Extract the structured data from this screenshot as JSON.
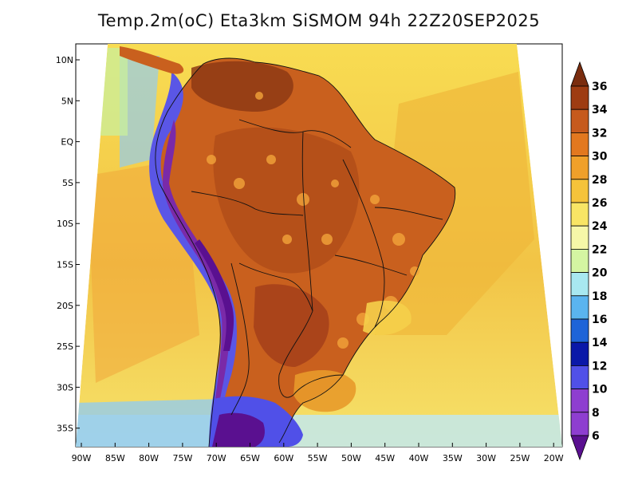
{
  "title": "Temp.2m(oC) Eta3km SiSMOM 94h 22Z20SEP2025",
  "map": {
    "lat_labels": [
      "10N",
      "5N",
      "EQ",
      "5S",
      "10S",
      "15S",
      "20S",
      "25S",
      "30S",
      "35S"
    ],
    "lon_labels": [
      "90W",
      "85W",
      "80W",
      "75W",
      "70W",
      "65W",
      "60W",
      "55W",
      "50W",
      "45W",
      "40W",
      "35W",
      "30W",
      "25W",
      "20W"
    ],
    "region": "South America",
    "field": "2m air temperature",
    "colors": {
      "ocean_warm": "#f3c44a",
      "ocean_cool": "#f8e860",
      "land_hot": "#c25a1c",
      "land_very_hot": "#9a3a12",
      "andes_cold": "#6a1f9a",
      "coast_cool": "#93ccee"
    }
  },
  "colorbar": {
    "labels": [
      "36",
      "34",
      "32",
      "30",
      "28",
      "26",
      "24",
      "22",
      "20",
      "18",
      "16",
      "14",
      "12",
      "10",
      "8",
      "6"
    ],
    "colors": [
      "#7a2d0f",
      "#9e3c12",
      "#c65a1d",
      "#e2781f",
      "#f0a02a",
      "#f5c33a",
      "#f8e565",
      "#f6f7a8",
      "#d4f5a2",
      "#a8e8f0",
      "#5ab4ef",
      "#1e64d8",
      "#0a18a8",
      "#5050e8",
      "#8e3ed0",
      "#5a1090"
    ]
  }
}
